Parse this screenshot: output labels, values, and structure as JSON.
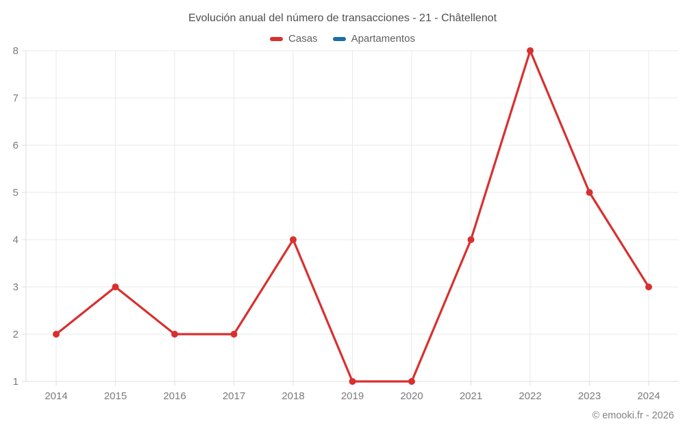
{
  "title": "Evolución anual del número de transacciones - 21 - Châtellenot",
  "legend": {
    "items": [
      {
        "label": "Casas",
        "color": "#d8302f"
      },
      {
        "label": "Apartamentos",
        "color": "#1c6ea4"
      }
    ]
  },
  "copyright": "© emooki.fr - 2026",
  "colors": {
    "grid": "#e9e9e9",
    "axis": "#dcdcdc",
    "tick_label": "#7a7a7a",
    "title_text": "#4f4f4f",
    "legend_text": "#5f5f5f",
    "copyright_text": "#828282",
    "background": "#ffffff"
  },
  "chart_data": {
    "type": "line",
    "title": "Evolución anual del número de transacciones - 21 - Châtellenot",
    "x": [
      2014,
      2015,
      2016,
      2017,
      2018,
      2019,
      2020,
      2021,
      2022,
      2023,
      2024
    ],
    "series": [
      {
        "name": "Casas",
        "color": "#d8302f",
        "values": [
          2,
          3,
          2,
          2,
          4,
          1,
          1,
          4,
          8,
          5,
          3
        ]
      },
      {
        "name": "Apartamentos",
        "color": "#1c6ea4",
        "values": []
      }
    ],
    "xlabel": "",
    "ylabel": "",
    "ylim": [
      1,
      8
    ],
    "yticks": [
      1,
      2,
      3,
      4,
      5,
      6,
      7,
      8
    ],
    "grid": true,
    "legend_position": "top",
    "point_radius": 5,
    "line_width": 3.2
  }
}
